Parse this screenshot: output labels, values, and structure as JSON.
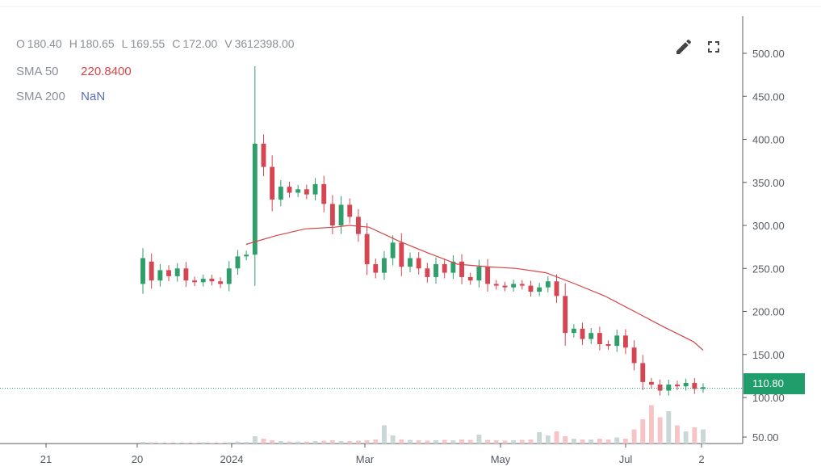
{
  "legend": {
    "ohlcv": [
      {
        "key": "O",
        "value": "180.40"
      },
      {
        "key": "H",
        "value": "180.65"
      },
      {
        "key": "L",
        "value": "169.55"
      },
      {
        "key": "C",
        "value": "172.00"
      },
      {
        "key": "V",
        "value": "3612398.00"
      }
    ],
    "sma50": {
      "name": "SMA 50",
      "value": "220.8400",
      "color": "#d64545"
    },
    "sma200": {
      "name": "SMA 200",
      "value": "NaN",
      "color": "#5b6bb5"
    }
  },
  "toolbar": {
    "edit_icon": "pencil-icon",
    "fullscreen_icon": "expand-icon"
  },
  "last_price": {
    "label": "110.80",
    "value": 110.8,
    "color": "#1f9e6c"
  },
  "colors": {
    "up": "#2e9e6a",
    "down": "#d64552",
    "sma50": "#d64545",
    "vol_up": "#c9d7d7",
    "vol_down": "#f6c4c4",
    "axis": "#555b63"
  },
  "chart_data": {
    "type": "candlestick",
    "y_axis": {
      "ticks": [
        50,
        100,
        150,
        200,
        250,
        300,
        350,
        400,
        450,
        500
      ],
      "tick_labels": [
        "50.00",
        "100.00",
        "150.00",
        "200.00",
        "250.00",
        "300.00",
        "350.00",
        "400.00",
        "450.00",
        "500.00"
      ],
      "ylim": [
        40,
        525
      ]
    },
    "x_axis": {
      "tick_labels": [
        "21",
        "20",
        "2024",
        "Mar",
        "May",
        "Jul",
        "2"
      ],
      "tick_dates": [
        "2023-12-21",
        "2023-12-20",
        "2024-01-01",
        "2024-03-01",
        "2024-05-01",
        "2024-07-01",
        "2024-07-02"
      ]
    },
    "start_date": "2023-12-20",
    "end_date": "2024-07-02",
    "candles_open_close": [
      [
        232,
        262
      ],
      [
        258,
        236
      ],
      [
        236,
        248
      ],
      [
        248,
        241
      ],
      [
        241,
        250
      ],
      [
        250,
        236
      ],
      [
        236,
        234
      ],
      [
        234,
        238
      ],
      [
        238,
        235
      ],
      [
        235,
        232
      ],
      [
        232,
        250
      ],
      [
        250,
        264
      ],
      [
        264,
        266
      ],
      [
        266,
        395
      ],
      [
        395,
        368
      ],
      [
        368,
        330
      ],
      [
        330,
        345
      ],
      [
        345,
        338
      ],
      [
        338,
        342
      ],
      [
        342,
        336
      ],
      [
        336,
        348
      ],
      [
        348,
        325
      ],
      [
        325,
        300
      ],
      [
        300,
        324
      ],
      [
        324,
        310
      ],
      [
        310,
        290
      ],
      [
        290,
        255
      ],
      [
        255,
        245
      ],
      [
        245,
        262
      ],
      [
        262,
        280
      ],
      [
        280,
        252
      ],
      [
        252,
        262
      ],
      [
        262,
        250
      ],
      [
        250,
        240
      ],
      [
        240,
        255
      ],
      [
        255,
        245
      ],
      [
        245,
        258
      ],
      [
        258,
        240
      ],
      [
        240,
        236
      ],
      [
        236,
        252
      ],
      [
        252,
        232
      ],
      [
        232,
        230
      ],
      [
        230,
        228
      ],
      [
        228,
        232
      ],
      [
        232,
        230
      ],
      [
        230,
        223
      ],
      [
        223,
        228
      ],
      [
        228,
        235
      ],
      [
        235,
        218
      ],
      [
        218,
        175
      ],
      [
        175,
        180
      ],
      [
        180,
        168
      ],
      [
        168,
        175
      ],
      [
        175,
        162
      ],
      [
        162,
        160
      ],
      [
        160,
        172
      ],
      [
        172,
        158
      ],
      [
        158,
        140
      ],
      [
        140,
        118
      ],
      [
        118,
        115
      ],
      [
        115,
        108
      ],
      [
        108,
        115
      ],
      [
        115,
        113
      ],
      [
        113,
        117
      ],
      [
        117,
        110
      ],
      [
        110,
        112
      ]
    ],
    "volume_scale_note": "",
    "volumes_relative": [
      0.04,
      0.03,
      0.02,
      0.02,
      0.02,
      0.02,
      0.02,
      0.03,
      0.02,
      0.02,
      0.03,
      0.05,
      0.04,
      0.18,
      0.12,
      0.08,
      0.06,
      0.05,
      0.05,
      0.05,
      0.06,
      0.07,
      0.08,
      0.06,
      0.06,
      0.07,
      0.08,
      0.1,
      0.45,
      0.2,
      0.1,
      0.09,
      0.08,
      0.07,
      0.08,
      0.09,
      0.08,
      0.1,
      0.09,
      0.22,
      0.09,
      0.08,
      0.07,
      0.08,
      0.09,
      0.1,
      0.28,
      0.2,
      0.3,
      0.18,
      0.12,
      0.1,
      0.1,
      0.12,
      0.1,
      0.15,
      0.12,
      0.35,
      0.6,
      0.95,
      0.65,
      0.8,
      0.45,
      0.3,
      0.4,
      0.35
    ],
    "sma50": [
      [
        21,
        278
      ],
      [
        27,
        288
      ],
      [
        33,
        296
      ],
      [
        39,
        298
      ],
      [
        42,
        300
      ],
      [
        46,
        298
      ],
      [
        52,
        282
      ],
      [
        58,
        268
      ],
      [
        64,
        255
      ],
      [
        70,
        252
      ],
      [
        76,
        250
      ],
      [
        82,
        245
      ],
      [
        88,
        232
      ],
      [
        94,
        218
      ],
      [
        100,
        200
      ],
      [
        106,
        182
      ],
      [
        112,
        165
      ],
      [
        114,
        155
      ]
    ],
    "sma50_x_scale_note": ""
  }
}
